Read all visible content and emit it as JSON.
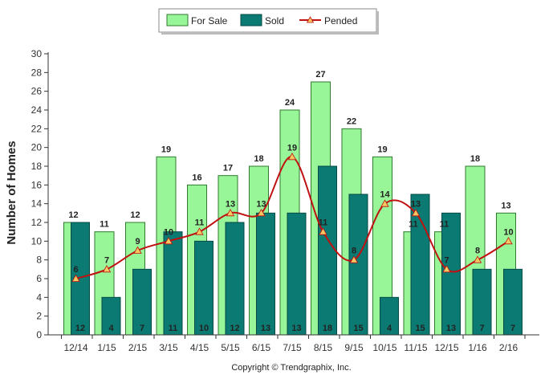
{
  "chart_data": {
    "type": "bar",
    "categories": [
      "12/14",
      "1/15",
      "2/15",
      "3/15",
      "4/15",
      "5/15",
      "6/15",
      "7/15",
      "8/15",
      "9/15",
      "10/15",
      "11/15",
      "12/15",
      "1/16",
      "2/16"
    ],
    "series": [
      {
        "name": "For Sale",
        "type": "bar",
        "color": "#98f598",
        "values": [
          12,
          11,
          12,
          19,
          16,
          17,
          18,
          24,
          27,
          22,
          19,
          11,
          11,
          18,
          13
        ]
      },
      {
        "name": "Sold",
        "type": "bar",
        "color": "#0a7a72",
        "values": [
          12,
          4,
          7,
          11,
          10,
          12,
          13,
          13,
          18,
          15,
          4,
          15,
          13,
          7,
          7
        ]
      },
      {
        "name": "Pended",
        "type": "line",
        "color": "#c01010",
        "values": [
          6,
          7,
          9,
          10,
          11,
          13,
          13,
          19,
          11,
          8,
          14,
          13,
          7,
          8,
          10
        ]
      }
    ],
    "title": "",
    "xlabel": "",
    "ylabel": "Number of Homes",
    "ylim": [
      0,
      30
    ],
    "yticks": [
      0,
      2,
      4,
      6,
      8,
      10,
      12,
      14,
      16,
      18,
      20,
      22,
      24,
      26,
      28,
      30
    ],
    "grid": false,
    "legend_position": "top-center"
  },
  "footer": {
    "copyright": "Copyright © Trendgraphix, Inc."
  }
}
